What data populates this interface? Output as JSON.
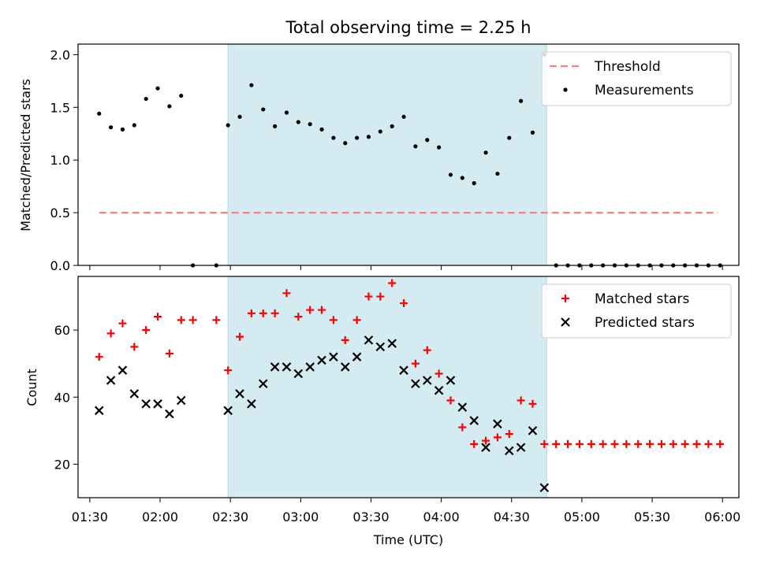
{
  "chart_data": {
    "type": "scatter",
    "title": "Total observing time = 2.25 h",
    "xlabel": "Time (UTC)",
    "x_ticks": [
      "01:30",
      "02:00",
      "02:30",
      "03:00",
      "03:30",
      "04:00",
      "04:30",
      "05:00",
      "05:30",
      "06:00"
    ],
    "x_range": [
      "01:25",
      "06:07"
    ],
    "observing_window": {
      "start": "02:29",
      "end": "04:45",
      "color": "#d4ebf1"
    },
    "panels": [
      {
        "ylabel": "Matched/Predicted stars",
        "ylim": [
          0,
          2.1
        ],
        "y_ticks": [
          "0.0",
          "0.5",
          "1.0",
          "1.5",
          "2.0"
        ],
        "legend": {
          "placement": "top-right",
          "entries": [
            "Threshold",
            "Measurements"
          ]
        },
        "threshold": {
          "name": "Threshold",
          "value": 0.5,
          "x_start": "01:34",
          "x_end": "05:58",
          "color": "#ff7f7f"
        },
        "series": [
          {
            "name": "Measurements",
            "marker": "dot",
            "color": "#000000",
            "points": [
              [
                "01:34",
                1.44
              ],
              [
                "01:39",
                1.31
              ],
              [
                "01:44",
                1.29
              ],
              [
                "01:49",
                1.33
              ],
              [
                "01:54",
                1.58
              ],
              [
                "01:59",
                1.68
              ],
              [
                "02:04",
                1.51
              ],
              [
                "02:09",
                1.61
              ],
              [
                "02:14",
                0.0
              ],
              [
                "02:24",
                0.0
              ],
              [
                "02:29",
                1.33
              ],
              [
                "02:34",
                1.41
              ],
              [
                "02:39",
                1.71
              ],
              [
                "02:44",
                1.48
              ],
              [
                "02:49",
                1.32
              ],
              [
                "02:54",
                1.45
              ],
              [
                "02:59",
                1.36
              ],
              [
                "03:04",
                1.34
              ],
              [
                "03:09",
                1.29
              ],
              [
                "03:14",
                1.21
              ],
              [
                "03:19",
                1.16
              ],
              [
                "03:24",
                1.21
              ],
              [
                "03:29",
                1.22
              ],
              [
                "03:34",
                1.27
              ],
              [
                "03:39",
                1.32
              ],
              [
                "03:44",
                1.41
              ],
              [
                "03:49",
                1.13
              ],
              [
                "03:54",
                1.19
              ],
              [
                "03:59",
                1.12
              ],
              [
                "04:04",
                0.86
              ],
              [
                "04:09",
                0.83
              ],
              [
                "04:14",
                0.78
              ],
              [
                "04:19",
                1.07
              ],
              [
                "04:24",
                0.87
              ],
              [
                "04:29",
                1.21
              ],
              [
                "04:34",
                1.56
              ],
              [
                "04:39",
                1.26
              ],
              [
                "04:44",
                2.0
              ],
              [
                "04:49",
                0.0
              ],
              [
                "04:54",
                0.0
              ],
              [
                "04:59",
                0.0
              ],
              [
                "05:04",
                0.0
              ],
              [
                "05:09",
                0.0
              ],
              [
                "05:14",
                0.0
              ],
              [
                "05:19",
                0.0
              ],
              [
                "05:24",
                0.0
              ],
              [
                "05:29",
                0.0
              ],
              [
                "05:34",
                0.0
              ],
              [
                "05:39",
                0.0
              ],
              [
                "05:44",
                0.0
              ],
              [
                "05:49",
                0.0
              ],
              [
                "05:54",
                0.0
              ],
              [
                "05:59",
                0.0
              ]
            ]
          }
        ]
      },
      {
        "ylabel": "Count",
        "ylim": [
          10,
          76
        ],
        "y_ticks": [
          "20",
          "40",
          "60"
        ],
        "legend": {
          "placement": "top-right",
          "entries": [
            "Matched stars",
            "Predicted stars"
          ]
        },
        "series": [
          {
            "name": "Matched stars",
            "marker": "plus",
            "color": "#ff0000",
            "points": [
              [
                "01:34",
                52
              ],
              [
                "01:39",
                59
              ],
              [
                "01:44",
                62
              ],
              [
                "01:49",
                55
              ],
              [
                "01:54",
                60
              ],
              [
                "01:59",
                64
              ],
              [
                "02:04",
                53
              ],
              [
                "02:09",
                63
              ],
              [
                "02:14",
                63
              ],
              [
                "02:24",
                63
              ],
              [
                "02:29",
                48
              ],
              [
                "02:34",
                58
              ],
              [
                "02:39",
                65
              ],
              [
                "02:44",
                65
              ],
              [
                "02:49",
                65
              ],
              [
                "02:54",
                71
              ],
              [
                "02:59",
                64
              ],
              [
                "03:04",
                66
              ],
              [
                "03:09",
                66
              ],
              [
                "03:14",
                63
              ],
              [
                "03:19",
                57
              ],
              [
                "03:24",
                63
              ],
              [
                "03:29",
                70
              ],
              [
                "03:34",
                70
              ],
              [
                "03:39",
                74
              ],
              [
                "03:44",
                68
              ],
              [
                "03:49",
                50
              ],
              [
                "03:54",
                54
              ],
              [
                "03:59",
                47
              ],
              [
                "04:04",
                39
              ],
              [
                "04:09",
                31
              ],
              [
                "04:14",
                26
              ],
              [
                "04:19",
                27
              ],
              [
                "04:24",
                28
              ],
              [
                "04:29",
                29
              ],
              [
                "04:34",
                39
              ],
              [
                "04:39",
                38
              ],
              [
                "04:44",
                26
              ],
              [
                "04:49",
                26
              ],
              [
                "04:54",
                26
              ],
              [
                "04:59",
                26
              ],
              [
                "05:04",
                26
              ],
              [
                "05:09",
                26
              ],
              [
                "05:14",
                26
              ],
              [
                "05:19",
                26
              ],
              [
                "05:24",
                26
              ],
              [
                "05:29",
                26
              ],
              [
                "05:34",
                26
              ],
              [
                "05:39",
                26
              ],
              [
                "05:44",
                26
              ],
              [
                "05:49",
                26
              ],
              [
                "05:54",
                26
              ],
              [
                "05:59",
                26
              ]
            ]
          },
          {
            "name": "Predicted stars",
            "marker": "x",
            "color": "#000000",
            "points": [
              [
                "01:34",
                36
              ],
              [
                "01:39",
                45
              ],
              [
                "01:44",
                48
              ],
              [
                "01:49",
                41
              ],
              [
                "01:54",
                38
              ],
              [
                "01:59",
                38
              ],
              [
                "02:04",
                35
              ],
              [
                "02:09",
                39
              ],
              [
                "02:29",
                36
              ],
              [
                "02:34",
                41
              ],
              [
                "02:39",
                38
              ],
              [
                "02:44",
                44
              ],
              [
                "02:49",
                49
              ],
              [
                "02:54",
                49
              ],
              [
                "02:59",
                47
              ],
              [
                "03:04",
                49
              ],
              [
                "03:09",
                51
              ],
              [
                "03:14",
                52
              ],
              [
                "03:19",
                49
              ],
              [
                "03:24",
                52
              ],
              [
                "03:29",
                57
              ],
              [
                "03:34",
                55
              ],
              [
                "03:39",
                56
              ],
              [
                "03:44",
                48
              ],
              [
                "03:49",
                44
              ],
              [
                "03:54",
                45
              ],
              [
                "03:59",
                42
              ],
              [
                "04:04",
                45
              ],
              [
                "04:09",
                37
              ],
              [
                "04:14",
                33
              ],
              [
                "04:19",
                25
              ],
              [
                "04:24",
                32
              ],
              [
                "04:29",
                24
              ],
              [
                "04:34",
                25
              ],
              [
                "04:39",
                30
              ],
              [
                "04:44",
                13
              ]
            ]
          }
        ]
      }
    ]
  }
}
